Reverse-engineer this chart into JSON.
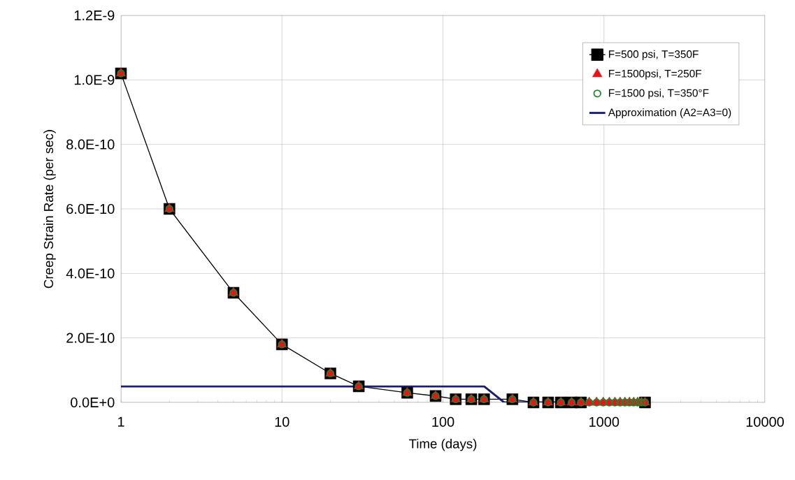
{
  "chart_data": {
    "type": "line",
    "xlabel": "Time (days)",
    "ylabel": "Creep Strain Rate (per sec)",
    "log": "x",
    "grid": true,
    "legend": "top right",
    "xlim": [
      1,
      10000
    ],
    "xticks": [
      1,
      10,
      100,
      1000,
      10000
    ],
    "ylim": [
      0,
      1.2e-09
    ],
    "yticks": [
      {
        "value": 0,
        "label": "0.0E+0"
      },
      {
        "value": 2e-10,
        "label": "2.0E-10"
      },
      {
        "value": 4e-10,
        "label": "4.0E-10"
      },
      {
        "value": 6e-10,
        "label": "6.0E-10"
      },
      {
        "value": 8e-10,
        "label": "8.0E-10"
      },
      {
        "value": 1e-09,
        "label": "1.0E-9"
      },
      {
        "value": 1.2e-09,
        "label": "1.2E-9"
      }
    ],
    "x": [
      1,
      2,
      5,
      10,
      20,
      30,
      60,
      90,
      120,
      150,
      180,
      270,
      365,
      450,
      540,
      630,
      720,
      810,
      900,
      990,
      1080,
      1170,
      1260,
      1350,
      1440,
      1530,
      1620,
      1710,
      1800
    ],
    "series": [
      {
        "name": "F=500 psi, T=350F",
        "marker": "square",
        "color": "#000000",
        "values": [
          1.02e-09,
          6e-10,
          3.4e-10,
          1.8e-10,
          9e-11,
          5e-11,
          3e-11,
          2e-11,
          1e-11,
          1e-11,
          1e-11,
          1e-11,
          0,
          0,
          0,
          0,
          0,
          null,
          null,
          null,
          null,
          null,
          null,
          null,
          null,
          null,
          null,
          null,
          0
        ]
      },
      {
        "name": "F=1500psi, T=250F",
        "type": "scatter",
        "marker": "triangle",
        "color": "#e8141b",
        "values": [
          1.02e-09,
          6e-10,
          3.4e-10,
          1.8e-10,
          9e-11,
          5e-11,
          3e-11,
          2e-11,
          1e-11,
          1e-11,
          1e-11,
          1e-11,
          0,
          0,
          0,
          0,
          0,
          0,
          0,
          0,
          0,
          0,
          0,
          0,
          0,
          0,
          0,
          0,
          0
        ]
      },
      {
        "name": "F=1500 psi, T=350°F",
        "type": "scatter",
        "marker": "circle",
        "color": "#1a8a2a",
        "values": [
          1.02e-09,
          6e-10,
          3.4e-10,
          1.8e-10,
          9e-11,
          5e-11,
          3e-11,
          2e-11,
          1e-11,
          1e-11,
          1e-11,
          1e-11,
          0,
          0,
          0,
          0,
          0,
          0,
          0,
          0,
          0,
          0,
          0,
          0,
          0,
          0,
          0,
          0,
          0
        ]
      },
      {
        "name": "Approximation (A2=A3=0)",
        "type": "line",
        "marker": "none",
        "color": "#1b1f6b",
        "x": [
          1,
          180,
          240,
          1900
        ],
        "values": [
          5e-11,
          5e-11,
          0,
          0
        ]
      }
    ]
  }
}
